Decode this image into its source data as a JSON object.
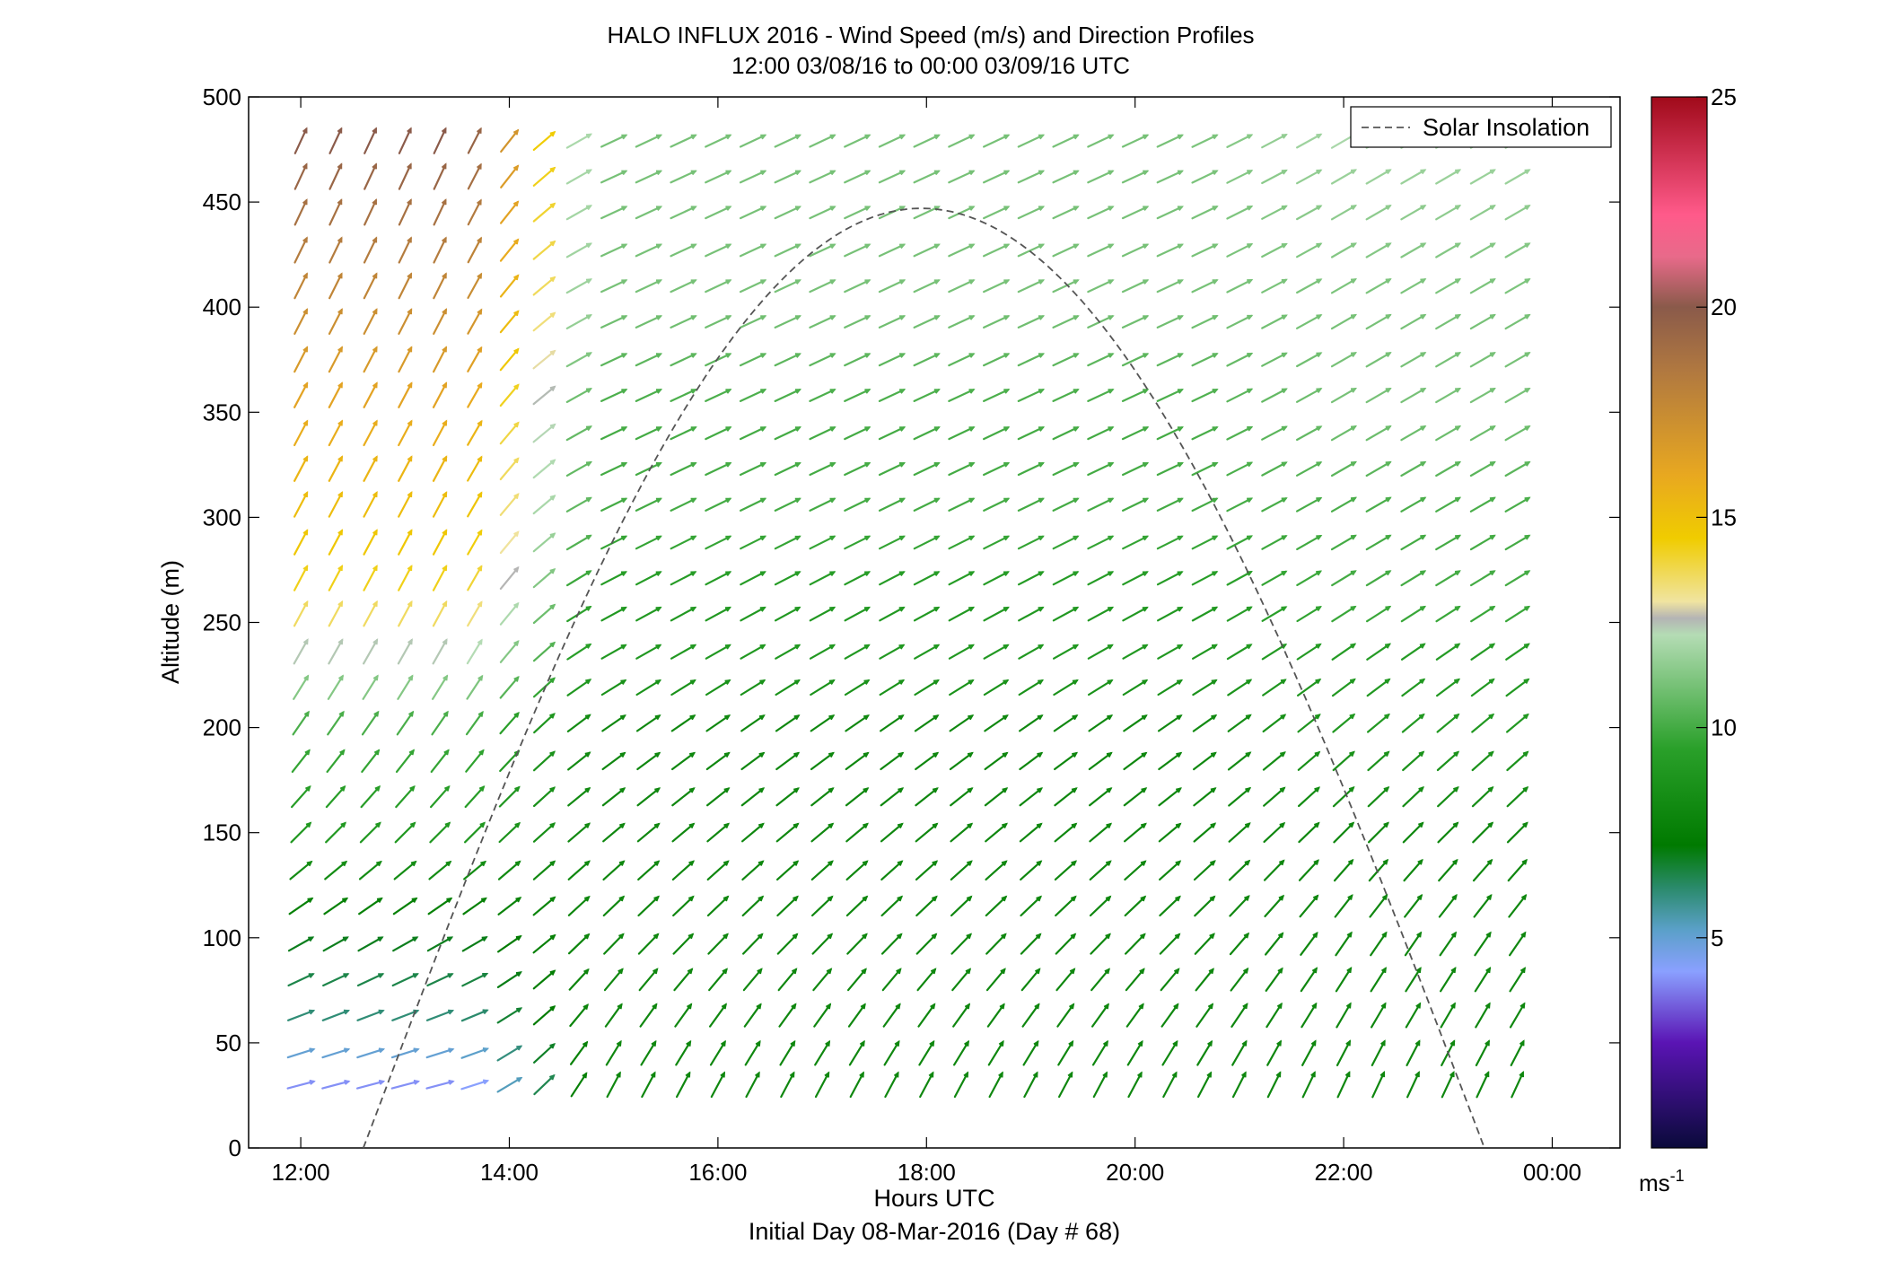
{
  "chart_data": {
    "type": "quiver",
    "title": "HALO INFLUX 2016 - Wind Speed (m/s) and Direction Profiles",
    "subtitle": "12:00 03/08/16 to 00:00 03/09/16  UTC",
    "xlabel": "Hours UTC",
    "xlabel2": "Initial Day 08-Mar-2016 (Day # 68)",
    "ylabel": "Altitude (m)",
    "xlim": [
      11.5,
      24.65
    ],
    "ylim": [
      0,
      500
    ],
    "xticks": [
      12,
      14,
      16,
      18,
      20,
      22,
      24
    ],
    "xtick_labels": [
      "12:00",
      "14:00",
      "16:00",
      "18:00",
      "20:00",
      "22:00",
      "00:00"
    ],
    "yticks": [
      0,
      50,
      100,
      150,
      200,
      250,
      300,
      350,
      400,
      450,
      500
    ],
    "ytick_labels": [
      "0",
      "50",
      "100",
      "150",
      "200",
      "250",
      "300",
      "350",
      "400",
      "450",
      "500"
    ],
    "times_start": 12.0,
    "times_step": 0.3333,
    "times_count": 36,
    "altitudes": [
      30,
      45,
      63,
      80,
      97,
      115,
      132,
      150,
      167,
      184,
      202,
      219,
      236,
      254,
      271,
      288,
      306,
      323,
      340,
      358,
      375,
      393,
      410,
      427,
      445,
      462,
      479
    ],
    "wind": {
      "speed_profile_alt": [
        30,
        60,
        100,
        150,
        200,
        230,
        260,
        300,
        350,
        400,
        450,
        480
      ],
      "speed_early": [
        4,
        6,
        7,
        9,
        10,
        12,
        14,
        15,
        16,
        17.5,
        19,
        20
      ],
      "speed_afternoon": [
        8,
        8,
        8,
        8,
        8,
        9,
        9,
        10,
        10,
        11,
        11,
        11
      ],
      "speed_evening": [
        8,
        8,
        8,
        8,
        9,
        9,
        10,
        10,
        11,
        11,
        11.5,
        12
      ],
      "dir_early_deg": [
        15,
        20,
        30,
        45,
        55,
        60,
        62,
        62,
        62,
        63,
        65,
        65
      ],
      "dir_afternoon_deg": [
        62,
        55,
        45,
        40,
        35,
        30,
        28,
        26,
        25,
        25,
        25,
        25
      ],
      "dir_evening_deg": [
        65,
        60,
        55,
        45,
        40,
        35,
        32,
        30,
        30,
        30,
        30,
        30
      ]
    },
    "solar_insolation": {
      "name": "Solar Insolation",
      "rise_hour": 12.6,
      "peak_hour": 17.95,
      "set_hour": 23.35,
      "peak_altitude": 447
    },
    "colorbar": {
      "min": 0,
      "max": 25,
      "ticks": [
        5,
        10,
        15,
        20,
        25
      ],
      "tick_labels": [
        "5",
        "10",
        "15",
        "20",
        "25"
      ],
      "unit_label": "ms",
      "unit_superscript": "-1",
      "stops": [
        {
          "v": 0,
          "c": "#0a0a3a"
        },
        {
          "v": 2.5,
          "c": "#5a14b4"
        },
        {
          "v": 4.2,
          "c": "#8aa0ff"
        },
        {
          "v": 5.2,
          "c": "#5aa0c8"
        },
        {
          "v": 6.2,
          "c": "#2a8a6a"
        },
        {
          "v": 7.2,
          "c": "#007a00"
        },
        {
          "v": 9.5,
          "c": "#2aa02a"
        },
        {
          "v": 12.2,
          "c": "#b4dcb4"
        },
        {
          "v": 12.6,
          "c": "#b4b4b4"
        },
        {
          "v": 13.0,
          "c": "#f0e4a0"
        },
        {
          "v": 14.5,
          "c": "#f0cc00"
        },
        {
          "v": 16.0,
          "c": "#e8a820"
        },
        {
          "v": 18.5,
          "c": "#b07840"
        },
        {
          "v": 20.0,
          "c": "#8a5a4a"
        },
        {
          "v": 21.2,
          "c": "#e86a8a"
        },
        {
          "v": 22.2,
          "c": "#ff5a8a"
        },
        {
          "v": 25.0,
          "c": "#a00a1a"
        }
      ]
    },
    "legend": {
      "position": "top-right",
      "entries": [
        "Solar Insolation"
      ]
    }
  }
}
